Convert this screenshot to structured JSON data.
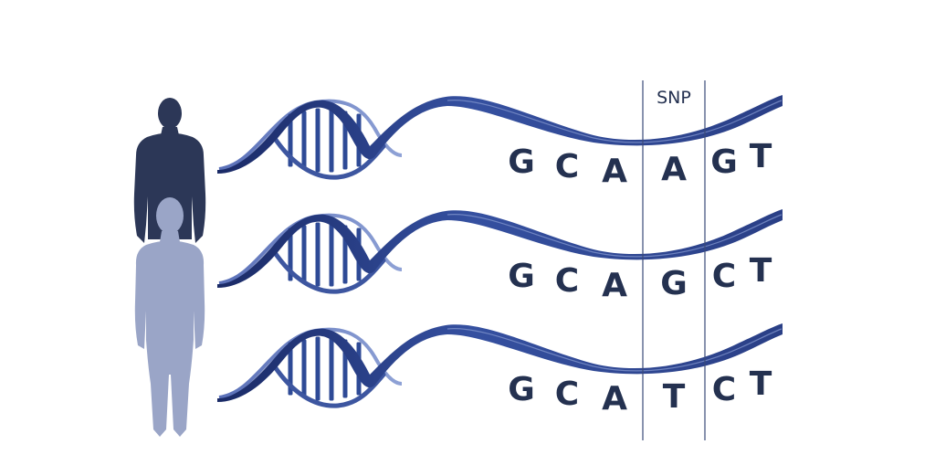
{
  "colors": {
    "background": "#ffffff",
    "dark_figure": "#2c3757",
    "light_figure": "#9aa5c7",
    "helix_dark": "#1f3270",
    "helix_mid": "#3d56a0",
    "helix_light": "#7f93cc",
    "rung": "#2e4a96",
    "letters": "#243150",
    "divider": "#3a4a78"
  },
  "figures": [
    {
      "name": "adult-figure",
      "icon": "person-silhouette-dark"
    },
    {
      "name": "child-figure",
      "icon": "person-silhouette-light"
    }
  ],
  "snp_label": "SNP",
  "sequences": [
    {
      "bases": [
        "G",
        "C",
        "A",
        "A",
        "G",
        "T"
      ]
    },
    {
      "bases": [
        "G",
        "C",
        "A",
        "G",
        "C",
        "T"
      ]
    },
    {
      "bases": [
        "G",
        "C",
        "A",
        "T",
        "C",
        "T"
      ]
    }
  ]
}
